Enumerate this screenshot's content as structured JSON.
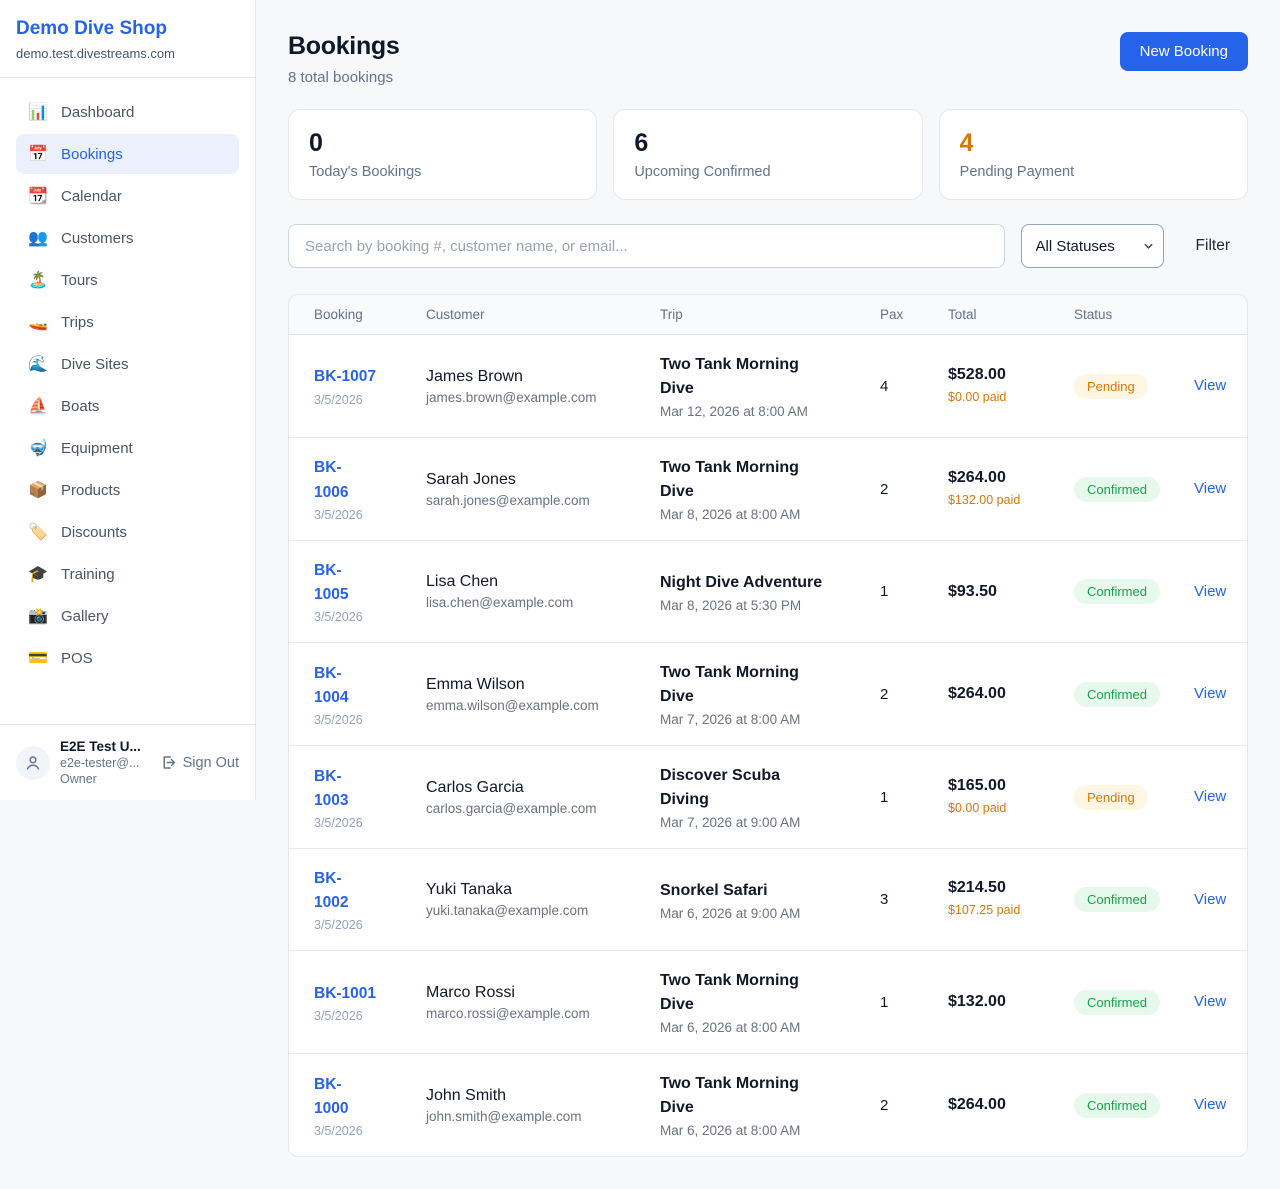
{
  "colors": {
    "brand": "#2563eb",
    "accent_orange": "#d97706",
    "confirmed_green": "#16a34a",
    "pending_bg": "#fdf6e2",
    "confirmed_bg": "#e7f8ed"
  },
  "sidebar": {
    "shop_name": "Demo Dive Shop",
    "shop_domain": "demo.test.divestreams.com",
    "items": [
      {
        "icon": "📊",
        "label": "Dashboard",
        "active": false
      },
      {
        "icon": "📅",
        "label": "Bookings",
        "active": true
      },
      {
        "icon": "📆",
        "label": "Calendar",
        "active": false
      },
      {
        "icon": "👥",
        "label": "Customers",
        "active": false
      },
      {
        "icon": "🏝️",
        "label": "Tours",
        "active": false
      },
      {
        "icon": "🚤",
        "label": "Trips",
        "active": false
      },
      {
        "icon": "🌊",
        "label": "Dive Sites",
        "active": false
      },
      {
        "icon": "⛵",
        "label": "Boats",
        "active": false
      },
      {
        "icon": "🤿",
        "label": "Equipment",
        "active": false
      },
      {
        "icon": "📦",
        "label": "Products",
        "active": false
      },
      {
        "icon": "🏷️",
        "label": "Discounts",
        "active": false
      },
      {
        "icon": "🎓",
        "label": "Training",
        "active": false
      },
      {
        "icon": "📸",
        "label": "Gallery",
        "active": false
      },
      {
        "icon": "💳",
        "label": "POS",
        "active": false
      }
    ],
    "user": {
      "name": "E2E Test U...",
      "email": "e2e-tester@...",
      "role": "Owner",
      "sign_out_label": "Sign Out"
    }
  },
  "header": {
    "title": "Bookings",
    "subtitle": "8 total bookings",
    "new_booking_label": "New Booking"
  },
  "stats": [
    {
      "value": "0",
      "label": "Today's Bookings",
      "accent": false
    },
    {
      "value": "6",
      "label": "Upcoming Confirmed",
      "accent": false
    },
    {
      "value": "4",
      "label": "Pending Payment",
      "accent": true
    }
  ],
  "filters": {
    "search_placeholder": "Search by booking #, customer name, or email...",
    "status_selected": "All Statuses",
    "filter_label": "Filter"
  },
  "table": {
    "columns": [
      "Booking",
      "Customer",
      "Trip",
      "Pax",
      "Total",
      "Status"
    ],
    "rows": [
      {
        "id_display": "BK-1007",
        "date": "3/5/2026",
        "customer": "James Brown",
        "email": "james.brown@example.com",
        "trip": "Two Tank Morning Dive",
        "trip_date": "Mar 12, 2026 at 8:00 AM",
        "pax": "4",
        "total": "$528.00",
        "paid": "$0.00 paid",
        "status": "Pending",
        "action": "View"
      },
      {
        "id_display": "BK-\n1006",
        "date": "3/5/2026",
        "customer": "Sarah Jones",
        "email": "sarah.jones@example.com",
        "trip": "Two Tank Morning Dive",
        "trip_date": "Mar 8, 2026 at 8:00 AM",
        "pax": "2",
        "total": "$264.00",
        "paid": "$132.00 paid",
        "status": "Confirmed",
        "action": "View"
      },
      {
        "id_display": "BK-\n1005",
        "date": "3/5/2026",
        "customer": "Lisa Chen",
        "email": "lisa.chen@example.com",
        "trip": "Night Dive Adventure",
        "trip_date": "Mar 8, 2026 at 5:30 PM",
        "pax": "1",
        "total": "$93.50",
        "paid": "",
        "status": "Confirmed",
        "action": "View"
      },
      {
        "id_display": "BK-\n1004",
        "date": "3/5/2026",
        "customer": "Emma Wilson",
        "email": "emma.wilson@example.com",
        "trip": "Two Tank Morning Dive",
        "trip_date": "Mar 7, 2026 at 8:00 AM",
        "pax": "2",
        "total": "$264.00",
        "paid": "",
        "status": "Confirmed",
        "action": "View"
      },
      {
        "id_display": "BK-\n1003",
        "date": "3/5/2026",
        "customer": "Carlos Garcia",
        "email": "carlos.garcia@example.com",
        "trip": "Discover Scuba Diving",
        "trip_date": "Mar 7, 2026 at 9:00 AM",
        "pax": "1",
        "total": "$165.00",
        "paid": "$0.00 paid",
        "status": "Pending",
        "action": "View"
      },
      {
        "id_display": "BK-\n1002",
        "date": "3/5/2026",
        "customer": "Yuki Tanaka",
        "email": "yuki.tanaka@example.com",
        "trip": "Snorkel Safari",
        "trip_date": "Mar 6, 2026 at 9:00 AM",
        "pax": "3",
        "total": "$214.50",
        "paid": "$107.25 paid",
        "status": "Confirmed",
        "action": "View"
      },
      {
        "id_display": "BK-1001",
        "date": "3/5/2026",
        "customer": "Marco Rossi",
        "email": "marco.rossi@example.com",
        "trip": "Two Tank Morning Dive",
        "trip_date": "Mar 6, 2026 at 8:00 AM",
        "pax": "1",
        "total": "$132.00",
        "paid": "",
        "status": "Confirmed",
        "action": "View"
      },
      {
        "id_display": "BK-\n1000",
        "date": "3/5/2026",
        "customer": "John Smith",
        "email": "john.smith@example.com",
        "trip": "Two Tank Morning Dive",
        "trip_date": "Mar 6, 2026 at 8:00 AM",
        "pax": "2",
        "total": "$264.00",
        "paid": "",
        "status": "Confirmed",
        "action": "View"
      }
    ]
  }
}
